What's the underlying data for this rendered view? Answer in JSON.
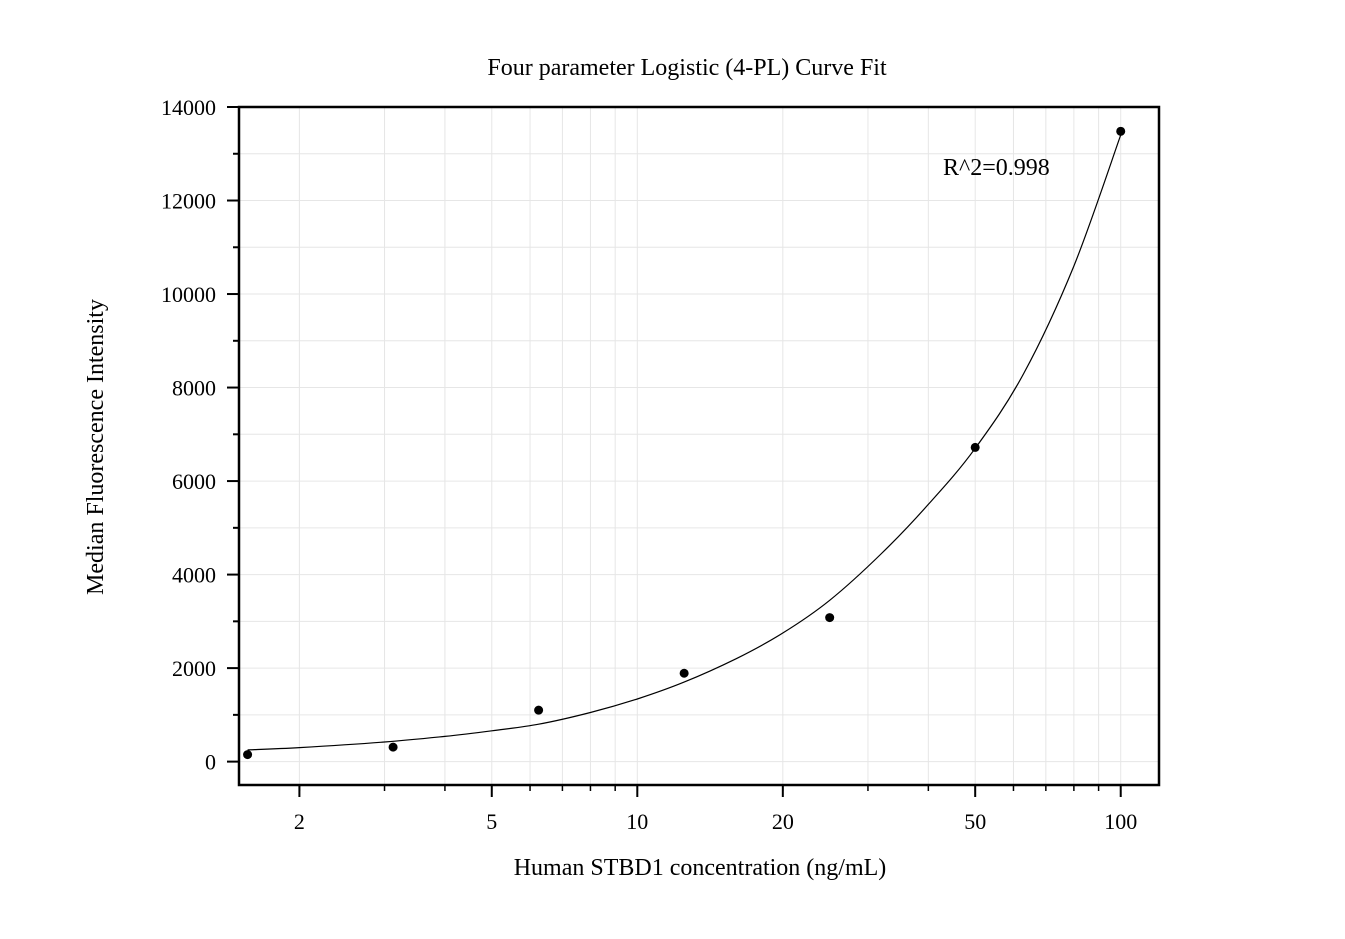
{
  "chart_data": {
    "type": "scatter",
    "title": "Four parameter Logistic (4-PL) Curve Fit",
    "xlabel": "Human STBD1 concentration (ng/mL)",
    "ylabel": "Median Fluorescence Intensity",
    "x_scale": "log",
    "xlim": [
      1.5,
      120
    ],
    "ylim": [
      -500,
      14000
    ],
    "x_ticks": [
      2,
      5,
      10,
      20,
      50,
      100
    ],
    "x_tick_labels": [
      "2",
      "5",
      "10",
      "20",
      "50",
      "100"
    ],
    "y_ticks": [
      0,
      2000,
      4000,
      6000,
      8000,
      10000,
      12000,
      14000
    ],
    "y_tick_labels": [
      "0",
      "2000",
      "4000",
      "6000",
      "8000",
      "10000",
      "12000",
      "14000"
    ],
    "grid": true,
    "annotation": "R^2=0.998",
    "series": [
      {
        "x": [
          1.5625,
          3.125,
          6.25,
          12.5,
          25,
          50,
          100
        ],
        "y": [
          150,
          310,
          1100,
          1890,
          3080,
          6720,
          13480
        ]
      }
    ],
    "fit_curve": {
      "x": [
        1.5625,
        2,
        3,
        4,
        5,
        6.25,
        8,
        10,
        12.5,
        16,
        20,
        25,
        32,
        40,
        50,
        63,
        80,
        100
      ],
      "y": [
        250,
        300,
        420,
        540,
        660,
        800,
        1050,
        1340,
        1700,
        2200,
        2750,
        3450,
        4450,
        5500,
        6700,
        8300,
        10600,
        13400
      ]
    },
    "colors": {
      "points": "#000000",
      "curve": "#000000",
      "grid": "#e6e6e6",
      "axis": "#000000"
    }
  }
}
